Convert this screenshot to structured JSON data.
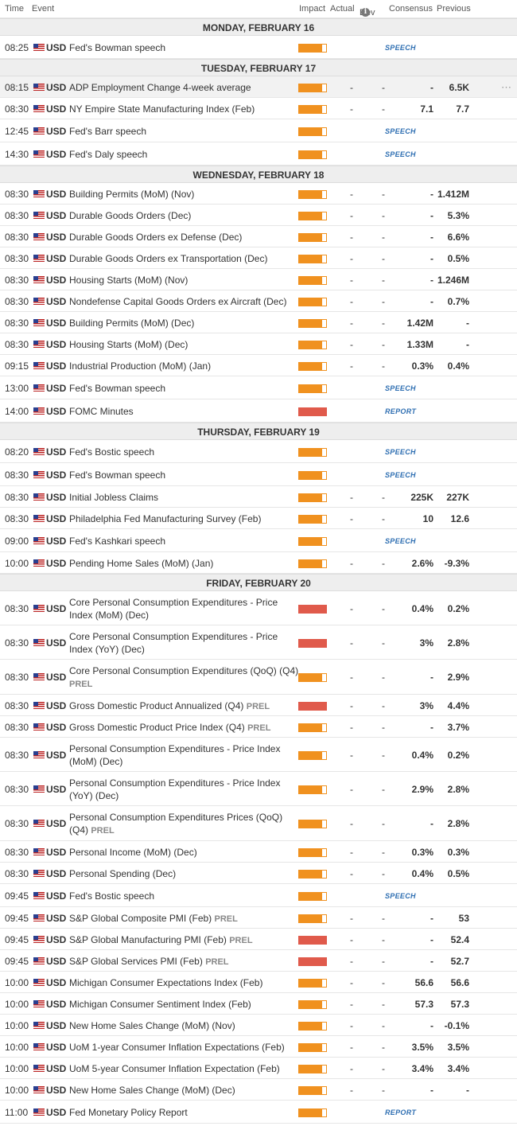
{
  "header": {
    "time": "Time",
    "event": "Event",
    "impact": "Impact",
    "actual": "Actual",
    "dev": "Dev",
    "consensus": "Consensus",
    "previous": "Previous"
  },
  "days": [
    {
      "label": "MONDAY, FEBRUARY 16",
      "rows": [
        {
          "time": "08:25",
          "cur": "USD",
          "event": "Fed's Bowman speech",
          "impact": "medium",
          "tag": "SPEECH"
        }
      ]
    },
    {
      "label": "TUESDAY, FEBRUARY 17",
      "rows": [
        {
          "time": "08:15",
          "cur": "USD",
          "event": "ADP Employment Change 4-week average",
          "impact": "medium",
          "actual": "-",
          "dev": "-",
          "cons": "-",
          "prev": "6.5K",
          "hl": true
        },
        {
          "time": "08:30",
          "cur": "USD",
          "event": "NY Empire State Manufacturing Index (Feb)",
          "impact": "medium",
          "actual": "-",
          "dev": "-",
          "cons": "7.1",
          "prev": "7.7"
        },
        {
          "time": "12:45",
          "cur": "USD",
          "event": "Fed's Barr speech",
          "impact": "medium",
          "tag": "SPEECH"
        },
        {
          "time": "14:30",
          "cur": "USD",
          "event": "Fed's Daly speech",
          "impact": "medium",
          "tag": "SPEECH"
        }
      ]
    },
    {
      "label": "WEDNESDAY, FEBRUARY 18",
      "rows": [
        {
          "time": "08:30",
          "cur": "USD",
          "event": "Building Permits (MoM) (Nov)",
          "impact": "medium",
          "actual": "-",
          "dev": "-",
          "cons": "-",
          "prev": "1.412M"
        },
        {
          "time": "08:30",
          "cur": "USD",
          "event": "Durable Goods Orders (Dec)",
          "impact": "medium",
          "actual": "-",
          "dev": "-",
          "cons": "-",
          "prev": "5.3%"
        },
        {
          "time": "08:30",
          "cur": "USD",
          "event": "Durable Goods Orders ex Defense (Dec)",
          "impact": "medium",
          "actual": "-",
          "dev": "-",
          "cons": "-",
          "prev": "6.6%"
        },
        {
          "time": "08:30",
          "cur": "USD",
          "event": "Durable Goods Orders ex Transportation (Dec)",
          "impact": "medium",
          "actual": "-",
          "dev": "-",
          "cons": "-",
          "prev": "0.5%"
        },
        {
          "time": "08:30",
          "cur": "USD",
          "event": "Housing Starts (MoM) (Nov)",
          "impact": "medium",
          "actual": "-",
          "dev": "-",
          "cons": "-",
          "prev": "1.246M"
        },
        {
          "time": "08:30",
          "cur": "USD",
          "event": "Nondefense Capital Goods Orders ex Aircraft (Dec)",
          "impact": "medium",
          "actual": "-",
          "dev": "-",
          "cons": "-",
          "prev": "0.7%"
        },
        {
          "time": "08:30",
          "cur": "USD",
          "event": "Building Permits (MoM) (Dec)",
          "impact": "medium",
          "actual": "-",
          "dev": "-",
          "cons": "1.42M",
          "prev": "-"
        },
        {
          "time": "08:30",
          "cur": "USD",
          "event": "Housing Starts (MoM) (Dec)",
          "impact": "medium",
          "actual": "-",
          "dev": "-",
          "cons": "1.33M",
          "prev": "-"
        },
        {
          "time": "09:15",
          "cur": "USD",
          "event": "Industrial Production (MoM) (Jan)",
          "impact": "medium",
          "actual": "-",
          "dev": "-",
          "cons": "0.3%",
          "prev": "0.4%"
        },
        {
          "time": "13:00",
          "cur": "USD",
          "event": "Fed's Bowman speech",
          "impact": "medium",
          "tag": "SPEECH"
        },
        {
          "time": "14:00",
          "cur": "USD",
          "event": "FOMC Minutes",
          "impact": "high",
          "tag": "REPORT"
        }
      ]
    },
    {
      "label": "THURSDAY, FEBRUARY 19",
      "rows": [
        {
          "time": "08:20",
          "cur": "USD",
          "event": "Fed's Bostic speech",
          "impact": "medium",
          "tag": "SPEECH"
        },
        {
          "time": "08:30",
          "cur": "USD",
          "event": "Fed's Bowman speech",
          "impact": "medium",
          "tag": "SPEECH"
        },
        {
          "time": "08:30",
          "cur": "USD",
          "event": "Initial Jobless Claims",
          "impact": "medium",
          "actual": "-",
          "dev": "-",
          "cons": "225K",
          "prev": "227K"
        },
        {
          "time": "08:30",
          "cur": "USD",
          "event": "Philadelphia Fed Manufacturing Survey (Feb)",
          "impact": "medium",
          "actual": "-",
          "dev": "-",
          "cons": "10",
          "prev": "12.6"
        },
        {
          "time": "09:00",
          "cur": "USD",
          "event": "Fed's Kashkari speech",
          "impact": "medium",
          "tag": "SPEECH"
        },
        {
          "time": "10:00",
          "cur": "USD",
          "event": "Pending Home Sales (MoM) (Jan)",
          "impact": "medium",
          "actual": "-",
          "dev": "-",
          "cons": "2.6%",
          "prev": "-9.3%"
        }
      ]
    },
    {
      "label": "FRIDAY, FEBRUARY 20",
      "rows": [
        {
          "time": "08:30",
          "cur": "USD",
          "event": "Core Personal Consumption Expenditures - Price Index (MoM) (Dec)",
          "impact": "high",
          "actual": "-",
          "dev": "-",
          "cons": "0.4%",
          "prev": "0.2%",
          "h": 43
        },
        {
          "time": "08:30",
          "cur": "USD",
          "event": "Core Personal Consumption Expenditures - Price Index (YoY) (Dec)",
          "impact": "high",
          "actual": "-",
          "dev": "-",
          "cons": "3%",
          "prev": "2.8%",
          "h": 43
        },
        {
          "time": "08:30",
          "cur": "USD",
          "event": "Core Personal Consumption Expenditures (QoQ) (Q4)",
          "prel": "PREL",
          "impact": "medium",
          "actual": "-",
          "dev": "-",
          "cons": "-",
          "prev": "2.9%",
          "h": 44
        },
        {
          "time": "08:30",
          "cur": "USD",
          "event": "Gross Domestic Product Annualized (Q4)",
          "prel": "PREL",
          "impact": "high",
          "actual": "-",
          "dev": "-",
          "cons": "3%",
          "prev": "4.4%"
        },
        {
          "time": "08:30",
          "cur": "USD",
          "event": "Gross Domestic Product Price Index (Q4)",
          "prel": "PREL",
          "impact": "medium",
          "actual": "-",
          "dev": "-",
          "cons": "-",
          "prev": "3.7%"
        },
        {
          "time": "08:30",
          "cur": "USD",
          "event": "Personal Consumption Expenditures - Price Index (MoM) (Dec)",
          "impact": "medium",
          "actual": "-",
          "dev": "-",
          "cons": "0.4%",
          "prev": "0.2%",
          "h": 43
        },
        {
          "time": "08:30",
          "cur": "USD",
          "event": "Personal Consumption Expenditures - Price Index (YoY) (Dec)",
          "impact": "medium",
          "actual": "-",
          "dev": "-",
          "cons": "2.9%",
          "prev": "2.8%",
          "h": 43
        },
        {
          "time": "08:30",
          "cur": "USD",
          "event": "Personal Consumption Expenditures Prices (QoQ) (Q4)",
          "prel": "PREL",
          "impact": "medium",
          "actual": "-",
          "dev": "-",
          "cons": "-",
          "prev": "2.8%",
          "h": 44
        },
        {
          "time": "08:30",
          "cur": "USD",
          "event": "Personal Income (MoM) (Dec)",
          "impact": "medium",
          "actual": "-",
          "dev": "-",
          "cons": "0.3%",
          "prev": "0.3%"
        },
        {
          "time": "08:30",
          "cur": "USD",
          "event": "Personal Spending (Dec)",
          "impact": "medium",
          "actual": "-",
          "dev": "-",
          "cons": "0.4%",
          "prev": "0.5%"
        },
        {
          "time": "09:45",
          "cur": "USD",
          "event": "Fed's Bostic speech",
          "impact": "medium",
          "tag": "SPEECH"
        },
        {
          "time": "09:45",
          "cur": "USD",
          "event": "S&P Global Composite PMI (Feb)",
          "prel": "PREL",
          "impact": "medium",
          "actual": "-",
          "dev": "-",
          "cons": "-",
          "prev": "53"
        },
        {
          "time": "09:45",
          "cur": "USD",
          "event": "S&P Global Manufacturing PMI (Feb)",
          "prel": "PREL",
          "impact": "high",
          "actual": "-",
          "dev": "-",
          "cons": "-",
          "prev": "52.4"
        },
        {
          "time": "09:45",
          "cur": "USD",
          "event": "S&P Global Services PMI (Feb)",
          "prel": "PREL",
          "impact": "high",
          "actual": "-",
          "dev": "-",
          "cons": "-",
          "prev": "52.7"
        },
        {
          "time": "10:00",
          "cur": "USD",
          "event": "Michigan Consumer Expectations Index (Feb)",
          "impact": "medium",
          "actual": "-",
          "dev": "-",
          "cons": "56.6",
          "prev": "56.6"
        },
        {
          "time": "10:00",
          "cur": "USD",
          "event": "Michigan Consumer Sentiment Index (Feb)",
          "impact": "medium",
          "actual": "-",
          "dev": "-",
          "cons": "57.3",
          "prev": "57.3"
        },
        {
          "time": "10:00",
          "cur": "USD",
          "event": "New Home Sales Change (MoM) (Nov)",
          "impact": "medium",
          "actual": "-",
          "dev": "-",
          "cons": "-",
          "prev": "-0.1%"
        },
        {
          "time": "10:00",
          "cur": "USD",
          "event": "UoM 1-year Consumer Inflation Expectations (Feb)",
          "impact": "medium",
          "actual": "-",
          "dev": "-",
          "cons": "3.5%",
          "prev": "3.5%"
        },
        {
          "time": "10:00",
          "cur": "USD",
          "event": "UoM 5-year Consumer Inflation Expectation (Feb)",
          "impact": "medium",
          "actual": "-",
          "dev": "-",
          "cons": "3.4%",
          "prev": "3.4%"
        },
        {
          "time": "10:00",
          "cur": "USD",
          "event": "New Home Sales Change (MoM) (Dec)",
          "impact": "medium",
          "actual": "-",
          "dev": "-",
          "cons": "-",
          "prev": "-"
        },
        {
          "time": "11:00",
          "cur": "USD",
          "event": "Fed Monetary Policy Report",
          "impact": "medium",
          "tag": "REPORT"
        }
      ]
    }
  ],
  "more_icon": "⋯",
  "colors": {
    "impact_medium": "#f0911f",
    "impact_high": "#e05a4b",
    "tag": "#2f6fb2"
  }
}
